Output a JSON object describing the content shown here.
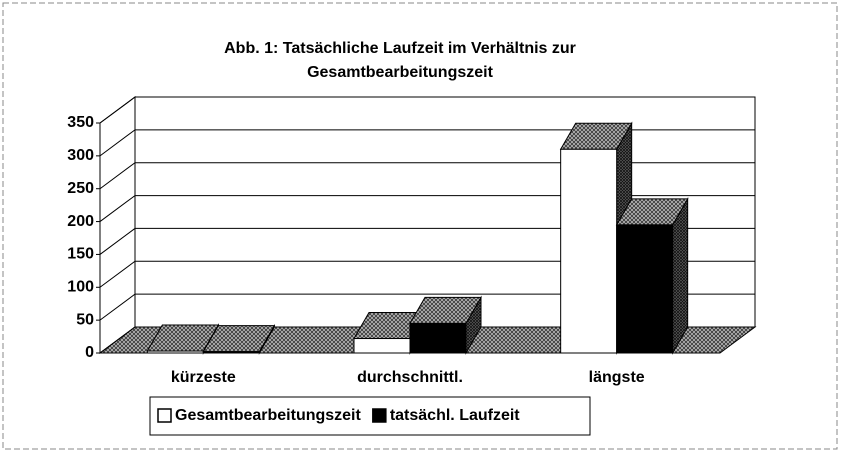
{
  "chart_data": {
    "type": "bar3d",
    "title": [
      "Abb. 1: Tatsächliche Laufzeit im Verhältnis zur",
      "Gesamtbearbeitungszeit"
    ],
    "categories": [
      "kürzeste",
      "durchschnittl.",
      "längste"
    ],
    "series": [
      {
        "name": "Gesamtbearbeitungszeit",
        "color": "#ffffff",
        "values": [
          3,
          22,
          310
        ]
      },
      {
        "name": "tatsächl. Laufzeit",
        "color": "#000000",
        "values": [
          2,
          45,
          195
        ]
      }
    ],
    "ylim": [
      0,
      350
    ],
    "yticks": [
      0,
      50,
      100,
      150,
      200,
      250,
      300,
      350
    ],
    "grid": true
  }
}
